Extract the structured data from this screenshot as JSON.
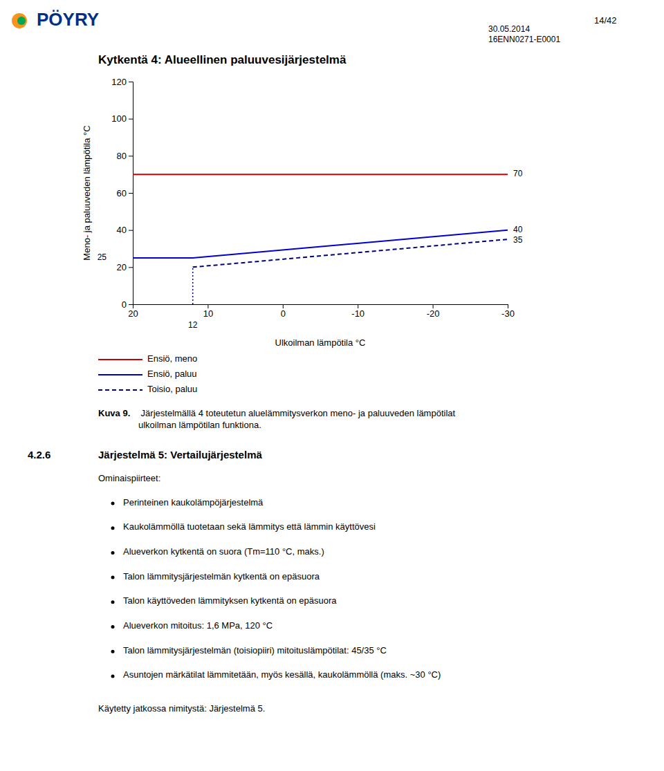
{
  "page": {
    "logo": "PÖYRY",
    "header_page": "14/42",
    "header_date": "30.05.2014",
    "header_code": "16ENN0271-E0001",
    "caption_bold": "Kuva 9.",
    "caption_text": " Järjestelmällä 4 toteutetun aluelämmitysverkon meno- ja paluuveden lämpötilat\nulkoilman lämpötilan funktiona.",
    "section_number": "4.2.6",
    "section_title": "Järjestelmä 5: Vertailujärjestelmä",
    "subsection_title": "Ominaispiirteet:",
    "bullet_points": [
      "Perinteinen kaukolämpöjärjestelmä",
      "Kaukolämmöllä tuotetaan sekä lämmitys että lämmin käyttövesi",
      "Alueverkon kytkentä on suora (Tm=110 °C, maks.)",
      "Talon lämmitysjärjestelmän kytkentä on epäsuora",
      "Talon käyttöveden lämmityksen kytkentä on epäsuora",
      "Alueverkon mitoitus: 1,6 MPa, 120 °C",
      "Talon lämmitysjärjestelmän (toisiopiiri) mitoituslämpötilat: 45/35 °C",
      "Asuntojen märkätilat lämmitetään, myös kesällä, kaukolämmöllä (maks. ~30 °C)"
    ],
    "footer_text": "Käytetty jatkossa nimitystä: Järjestelmä 5."
  },
  "chart_data": {
    "type": "line",
    "title": "Kytkentä 4: Alueellinen paluuvesijärjestelmä",
    "xlabel": "Ulkoilman lämpötila °C",
    "ylabel": "Meno- ja paluuveden lämpötila °C",
    "xlim": [
      20,
      -30
    ],
    "ylim": [
      0,
      120
    ],
    "xticks": [
      20,
      10,
      0,
      -10,
      -20,
      -30
    ],
    "yticks": [
      0,
      20,
      40,
      60,
      80,
      100,
      120
    ],
    "grid": false,
    "legend": "bottom",
    "series": [
      {
        "name": "Ensiö, meno",
        "color": "#cc0000",
        "line_style": "solid",
        "x": [
          20,
          -30
        ],
        "values": [
          70,
          70
        ]
      },
      {
        "name": "Ensiö, paluu",
        "color": "#0000cc",
        "line_style": "solid",
        "x": [
          20,
          12,
          -30
        ],
        "values": [
          25,
          25,
          40
        ]
      },
      {
        "name": "Toisio, paluu",
        "color": "#000080",
        "line_style": "dashed",
        "x": [
          12,
          -30
        ],
        "values": [
          20,
          35
        ]
      },
      {
        "color": "#000080",
        "line_style": "dotted",
        "x": [
          12,
          12
        ],
        "values": [
          0,
          20
        ]
      }
    ],
    "annotations": [
      {
        "text": "70",
        "x": -30,
        "y": 70
      },
      {
        "text": "40",
        "x": -30,
        "y": 40
      },
      {
        "text": "35",
        "x": -30,
        "y": 35
      },
      {
        "text": "12",
        "x": 12,
        "y": 0
      },
      {
        "text": "25",
        "x": 20,
        "y": 25
      }
    ]
  }
}
